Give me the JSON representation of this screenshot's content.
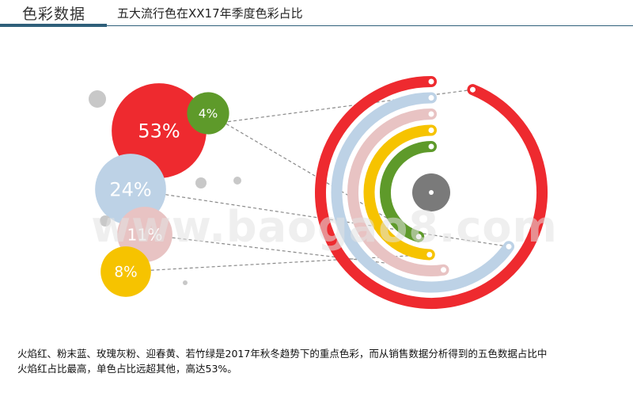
{
  "header": {
    "section_label": "色彩数据",
    "title": "五大流行色在XX17年季度色彩占比"
  },
  "watermark": "www.baogao8.com",
  "caption": {
    "line1": "火焰红、粉末蓝、玫瑰灰粉、迎春黄、若竹绿是2017年秋冬趋势下的重点色彩，而从销售数据分析得到的五色数据占比中",
    "line2": "火焰红占比最高，单色占比远超其他，高达53%。"
  },
  "chart_data": {
    "type": "bubble-radial",
    "title": "五大流行色在XX17年季度色彩占比",
    "unit": "%",
    "series": [
      {
        "label": "53%",
        "value": 53,
        "color": "#ee2a2f"
      },
      {
        "label": "24%",
        "value": 24,
        "color": "#bdd2e6"
      },
      {
        "label": "11%",
        "value": 11,
        "color": "#e8c3c3"
      },
      {
        "label": "8%",
        "value": 8,
        "color": "#f6c300"
      },
      {
        "label": "4%",
        "value": 4,
        "color": "#5e9a2a"
      }
    ],
    "center_color": "#7a7a7a",
    "accent_gray": "#c8c8c8"
  }
}
